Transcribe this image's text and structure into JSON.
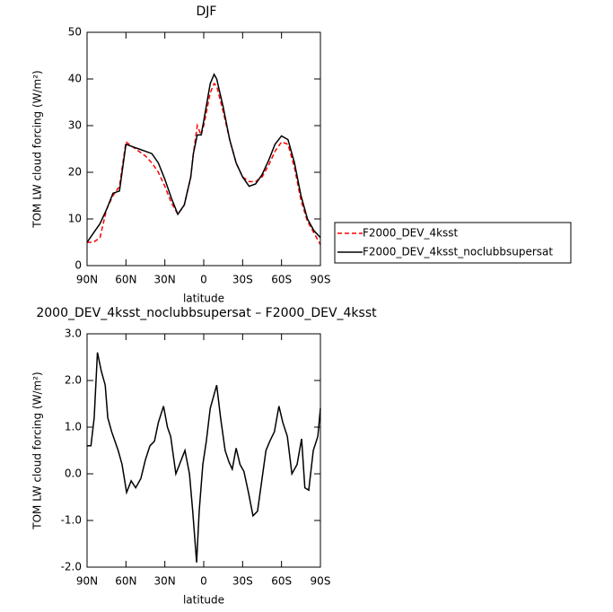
{
  "chart_data": [
    {
      "type": "line",
      "title": "DJF",
      "x_label": "latitude",
      "y_label": "TOM LW cloud forcing (W/m²)",
      "x": [
        90,
        85,
        80,
        75,
        70,
        65,
        60,
        55,
        50,
        45,
        40,
        35,
        30,
        25,
        20,
        15,
        10,
        8,
        5,
        2,
        0,
        -5,
        -8,
        -10,
        -15,
        -20,
        -25,
        -30,
        -35,
        -40,
        -45,
        -50,
        -55,
        -60,
        -65,
        -70,
        -75,
        -80,
        -85,
        -90
      ],
      "series": [
        {
          "name": "F2000_DEV_4ksst",
          "color": "#ff0000",
          "linestyle": "dashed",
          "values": [
            5,
            5,
            6,
            12,
            15,
            17,
            26.5,
            25.5,
            24.5,
            23.5,
            22,
            20,
            17,
            13.5,
            11,
            13,
            19,
            24,
            30,
            28,
            30,
            37,
            39,
            38.5,
            33,
            27,
            22,
            19,
            18,
            18,
            19,
            21.5,
            24.5,
            26.5,
            26,
            21,
            14,
            9.5,
            7,
            4.5
          ]
        },
        {
          "name": "F2000_DEV_4ksst_noclubbsupersat",
          "color": "#000000",
          "linestyle": "solid",
          "values": [
            5,
            7,
            9,
            12,
            15.5,
            16,
            26,
            25.5,
            25,
            24.5,
            24,
            22,
            18.5,
            14.5,
            11,
            13,
            19,
            24,
            28,
            28,
            31,
            39,
            41,
            40,
            34,
            27,
            22,
            19,
            17,
            17.5,
            19.5,
            22.5,
            26,
            27.8,
            27,
            22,
            15,
            10,
            7.5,
            6
          ]
        }
      ],
      "xlim": [
        90,
        -90
      ],
      "xticks": [
        {
          "value": 90,
          "label": "90N"
        },
        {
          "value": 60,
          "label": "60N"
        },
        {
          "value": 30,
          "label": "30N"
        },
        0,
        {
          "value": -30,
          "label": "30S"
        },
        {
          "value": -60,
          "label": "60S"
        },
        {
          "value": -90,
          "label": "90S"
        }
      ],
      "ylim": [
        0,
        50
      ],
      "yticks": [
        0,
        10,
        20,
        30,
        40,
        50
      ],
      "legend": "right"
    },
    {
      "type": "line",
      "title": "2000_DEV_4ksst_noclubbsupersat – F2000_DEV_4ksst",
      "x_label": "latitude",
      "y_label": "TOM LW cloud forcing (W/m²)",
      "x": [
        90,
        87,
        84.5,
        82,
        79,
        76,
        74,
        71,
        68.5,
        66,
        63,
        59.5,
        56,
        52.5,
        48.5,
        45,
        41.5,
        38,
        35,
        31,
        28,
        25.5,
        21.5,
        18,
        14.5,
        11,
        8.5,
        5.5,
        3.5,
        0.7,
        -2,
        -5,
        -10,
        -13,
        -16.5,
        -19.5,
        -22,
        -25,
        -28,
        -31,
        -34.5,
        -38,
        -41.5,
        -44,
        -48,
        -51,
        -54.5,
        -58,
        -61,
        -64.5,
        -68,
        -72,
        -75.5,
        -78,
        -81,
        -84.5,
        -88,
        -90
      ],
      "series": [
        {
          "color": "#000000",
          "linestyle": "solid",
          "values": [
            0.6,
            0.6,
            1.2,
            2.6,
            2.2,
            1.9,
            1.2,
            0.9,
            0.7,
            0.5,
            0.2,
            -0.4,
            -0.15,
            -0.3,
            -0.1,
            0.3,
            0.6,
            0.7,
            1.1,
            1.45,
            1.0,
            0.8,
            0.0,
            0.25,
            0.5,
            0.0,
            -0.8,
            -1.9,
            -0.8,
            0.2,
            0.7,
            1.4,
            1.9,
            1.2,
            0.5,
            0.25,
            0.1,
            0.55,
            0.2,
            0.05,
            -0.4,
            -0.9,
            -0.8,
            -0.3,
            0.5,
            0.7,
            0.9,
            1.45,
            1.1,
            0.8,
            0.0,
            0.2,
            0.75,
            -0.3,
            -0.35,
            0.5,
            0.8,
            1.4
          ]
        }
      ],
      "xlim": [
        90,
        -90
      ],
      "xticks": [
        {
          "value": 90,
          "label": "90N"
        },
        {
          "value": 60,
          "label": "60N"
        },
        {
          "value": 30,
          "label": "30N"
        },
        0,
        {
          "value": -30,
          "label": "30S"
        },
        {
          "value": -60,
          "label": "60S"
        },
        {
          "value": -90,
          "label": "90S"
        }
      ],
      "ylim": [
        -2,
        3
      ],
      "yticks": [
        {
          "value": -2,
          "label": "-2.0"
        },
        {
          "value": -1,
          "label": "-1.0"
        },
        {
          "value": 0,
          "label": "0.0"
        },
        {
          "value": 1,
          "label": "1.0"
        },
        {
          "value": 2,
          "label": "2.0"
        },
        {
          "value": 3,
          "label": "3.0"
        }
      ]
    }
  ]
}
